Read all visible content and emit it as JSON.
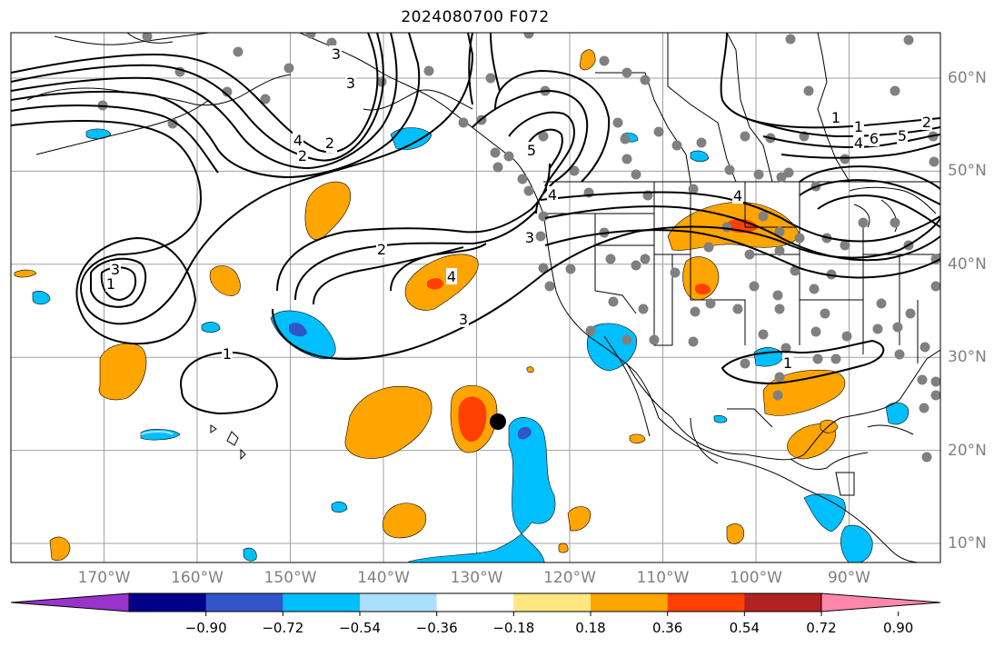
{
  "title": "2024080700 F072",
  "map": {
    "lon_ticks": [
      "170°W",
      "160°W",
      "150°W",
      "140°W",
      "130°W",
      "120°W",
      "110°W",
      "100°W",
      "90°W"
    ],
    "lat_ticks": [
      "60°N",
      "50°N",
      "40°N",
      "30°N",
      "20°N",
      "10°N"
    ],
    "grid_color": "#a0a0a0",
    "contour_labels": [
      "6",
      "3",
      "4",
      "2",
      "1",
      "5",
      "4",
      "3",
      "2",
      "4",
      "3",
      "1",
      "2",
      "1",
      "3",
      "4",
      "1",
      "1",
      "1",
      "2",
      "4",
      "5",
      "6",
      "3"
    ],
    "marker": {
      "lon": -128.0,
      "lat": 23.0,
      "color": "#000000"
    }
  },
  "colorbar": {
    "colors": [
      "#9933cc",
      "#000088",
      "#3355cc",
      "#00bfff",
      "#aadfff",
      "#ffffff",
      "#ffe680",
      "#ffa500",
      "#ff4000",
      "#b22222",
      "#ff88aa"
    ],
    "tick_labels": [
      "−0.90",
      "−0.72",
      "−0.54",
      "−0.36",
      "−0.18",
      "0.18",
      "0.36",
      "0.54",
      "0.72",
      "0.90"
    ]
  }
}
